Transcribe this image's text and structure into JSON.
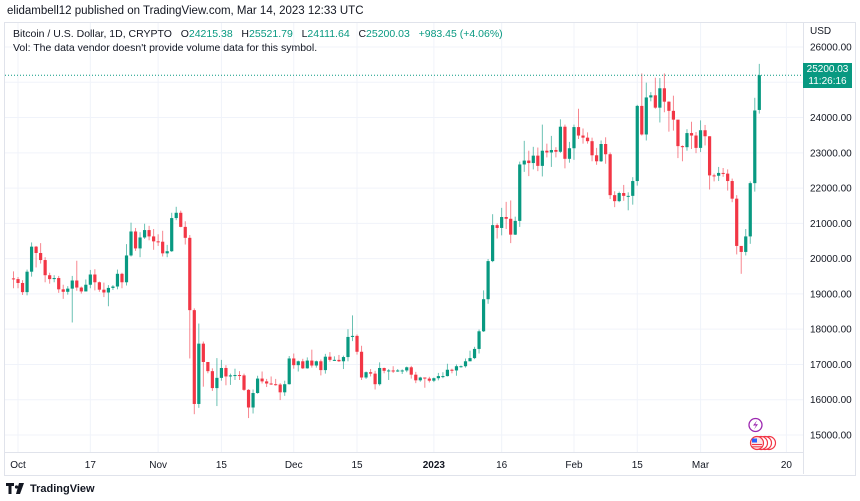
{
  "header": {
    "published": "elidambell12 published on TradingView.com, Mar 14, 2023 12:33 UTC"
  },
  "legend": {
    "symbol": "Bitcoin / U.S. Dollar, 1D, CRYPTO",
    "o_label": "O",
    "o": "24215.38",
    "h_label": "H",
    "h": "25521.79",
    "l_label": "L",
    "l": "24111.64",
    "c_label": "C",
    "c": "25200.03",
    "change": "+983.45 (+4.06%)",
    "vol": "Vol: The data vendor doesn't provide volume data for this symbol."
  },
  "price_label": {
    "price": "25200.03",
    "countdown": "11:26:16"
  },
  "footer": {
    "brand": "TradingView"
  },
  "colors": {
    "up": "#089981",
    "down": "#f23645",
    "grid": "#f0f3fa",
    "text": "#131722",
    "accent": "#089981"
  },
  "icons": {
    "event": "lightning-bolt-icon",
    "economic": "us-flag-icon"
  },
  "chart_data": {
    "type": "candlestick",
    "currency": "USD",
    "start_date": "2022-09-30",
    "interval": "1D",
    "ylim": [
      14600,
      26500
    ],
    "yticks": [
      15000,
      16000,
      17000,
      18000,
      19000,
      20000,
      21000,
      22000,
      23000,
      24000,
      25000,
      26000
    ],
    "ytick_labels": [
      "15000.00",
      "16000.00",
      "17000.00",
      "18000.00",
      "19000.00",
      "20000.00",
      "21000.00",
      "22000.00",
      "23000.00",
      "24000.00",
      "25000.00",
      "26000.00"
    ],
    "xticks": [
      {
        "label": "Oct",
        "date": "2022-10-01"
      },
      {
        "label": "17",
        "date": "2022-10-17"
      },
      {
        "label": "Nov",
        "date": "2022-11-01"
      },
      {
        "label": "15",
        "date": "2022-11-15"
      },
      {
        "label": "Dec",
        "date": "2022-12-01"
      },
      {
        "label": "15",
        "date": "2022-12-15"
      },
      {
        "label": "2023",
        "date": "2023-01-01"
      },
      {
        "label": "16",
        "date": "2023-01-16"
      },
      {
        "label": "Feb",
        "date": "2023-02-01"
      },
      {
        "label": "15",
        "date": "2023-02-15"
      },
      {
        "label": "Mar",
        "date": "2023-03-01"
      },
      {
        "label": "20",
        "date": "2023-03-20"
      }
    ],
    "last_price": 25200.03,
    "first_open": 19440,
    "last_open": 24215.38,
    "close": [
      19420,
      19310,
      19050,
      19630,
      20340,
      20160,
      19960,
      19530,
      19420,
      19450,
      19130,
      19060,
      19150,
      19380,
      19180,
      19070,
      19260,
      19550,
      19330,
      19120,
      19040,
      19170,
      19210,
      19570,
      19330,
      20090,
      20770,
      20290,
      20600,
      20810,
      20630,
      20490,
      20480,
      20150,
      20210,
      21150,
      21300,
      20900,
      20590,
      18540,
      15880,
      17590,
      17070,
      16810,
      16330,
      16620,
      16900,
      16660,
      16690,
      16700,
      16690,
      16280,
      15780,
      16190,
      16600,
      16520,
      16460,
      16440,
      16430,
      16210,
      16440,
      17170,
      16980,
      17090,
      16890,
      17110,
      16970,
      17090,
      16840,
      17220,
      17130,
      17130,
      17090,
      17210,
      17780,
      17810,
      17360,
      16630,
      16780,
      16740,
      16440,
      16900,
      16820,
      16830,
      16800,
      16830,
      16830,
      16920,
      16710,
      16550,
      16630,
      16600,
      16540,
      16610,
      16670,
      16670,
      16850,
      16830,
      16950,
      16950,
      17090,
      17180,
      17440,
      17940,
      18850,
      19930,
      20950,
      20870,
      21180,
      21130,
      20680,
      21070,
      22670,
      22780,
      22710,
      22920,
      22630,
      23060,
      23010,
      23080,
      23030,
      23740,
      22830,
      23130,
      23730,
      23490,
      23430,
      23330,
      22930,
      22760,
      23250,
      22960,
      21800,
      21630,
      21860,
      21780,
      21780,
      22200,
      24330,
      23520,
      24570,
      24630,
      24280,
      24830,
      24450,
      24190,
      23940,
      23190,
      23160,
      23560,
      23490,
      23140,
      23640,
      23470,
      22360,
      22350,
      22430,
      22410,
      22200,
      21700,
      20360,
      20190,
      20630,
      22140,
      24200,
      25200.03
    ],
    "high": [
      19640,
      19480,
      19390,
      19690,
      20460,
      20360,
      20440,
      20040,
      19600,
      19530,
      19510,
      19260,
      19220,
      19510,
      19940,
      19210,
      19410,
      19680,
      19700,
      19350,
      19320,
      19250,
      19250,
      19690,
      19600,
      20410,
      21020,
      20870,
      20750,
      20990,
      20930,
      20840,
      20690,
      20790,
      20390,
      21300,
      21470,
      21360,
      21060,
      20670,
      18590,
      18160,
      17650,
      17070,
      16890,
      17180,
      17130,
      16980,
      16740,
      16880,
      16810,
      16740,
      16300,
      16290,
      16680,
      16800,
      16590,
      16660,
      16590,
      16470,
      16540,
      17240,
      17310,
      17110,
      17160,
      17200,
      17420,
      17110,
      17140,
      17300,
      17350,
      17230,
      17270,
      17250,
      18000,
      18390,
      17850,
      17530,
      16800,
      16870,
      16820,
      17060,
      16910,
      16870,
      16950,
      16870,
      16860,
      16940,
      16960,
      16790,
      16650,
      16630,
      16650,
      16630,
      16760,
      16780,
      17020,
      16880,
      17000,
      16970,
      17170,
      17390,
      17500,
      17990,
      19100,
      19990,
      21260,
      21000,
      21440,
      21610,
      21650,
      21190,
      22750,
      23340,
      23060,
      23170,
      23150,
      23800,
      23260,
      23480,
      23160,
      23950,
      23800,
      23310,
      23800,
      24250,
      23690,
      23580,
      23430,
      23140,
      23350,
      23440,
      23010,
      21910,
      21900,
      22090,
      21880,
      22310,
      24360,
      25250,
      24990,
      24720,
      25130,
      25120,
      25250,
      24460,
      24620,
      23890,
      23210,
      23670,
      23880,
      23590,
      23920,
      23790,
      23470,
      22410,
      22600,
      22570,
      22530,
      22270,
      21800,
      20310,
      20840,
      22190,
      24560,
      25521.79
    ],
    "low": [
      19160,
      19160,
      18970,
      18960,
      19490,
      19750,
      19860,
      19330,
      19290,
      19330,
      19030,
      18860,
      18980,
      18190,
      19090,
      19010,
      19070,
      19160,
      19100,
      19060,
      18910,
      18650,
      19110,
      19130,
      19160,
      19240,
      20060,
      20220,
      20040,
      20560,
      20520,
      20250,
      20360,
      20060,
      20040,
      20190,
      21090,
      20890,
      20400,
      17170,
      15590,
      15770,
      16370,
      16750,
      16250,
      15820,
      16540,
      16410,
      16420,
      16560,
      16560,
      16250,
      15480,
      15610,
      16170,
      16460,
      16360,
      16420,
      16400,
      15990,
      16110,
      16430,
      16880,
      16800,
      16870,
      16880,
      16910,
      16910,
      16690,
      16740,
      17080,
      17100,
      17070,
      16870,
      17090,
      17660,
      17280,
      16560,
      16590,
      16660,
      16290,
      16400,
      16750,
      16560,
      16760,
      16790,
      16730,
      16780,
      16600,
      16470,
      16510,
      16340,
      16490,
      16500,
      16550,
      16610,
      16660,
      16750,
      16680,
      16910,
      16910,
      17090,
      17150,
      17310,
      17920,
      18720,
      19900,
      20570,
      20660,
      20840,
      20440,
      20670,
      20900,
      22460,
      22340,
      22530,
      22480,
      22330,
      22870,
      22600,
      22870,
      23000,
      22560,
      22720,
      22800,
      23390,
      23260,
      23260,
      22760,
      22660,
      22740,
      22690,
      21690,
      21460,
      21600,
      21640,
      21370,
      21530,
      22070,
      23490,
      23350,
      24460,
      24250,
      23860,
      24150,
      23600,
      23630,
      22850,
      22760,
      23060,
      23110,
      22990,
      23020,
      23210,
      21960,
      22190,
      22200,
      22320,
      21930,
      21600,
      20120,
      19570,
      20090,
      20420,
      21900,
      24111.64
    ]
  }
}
